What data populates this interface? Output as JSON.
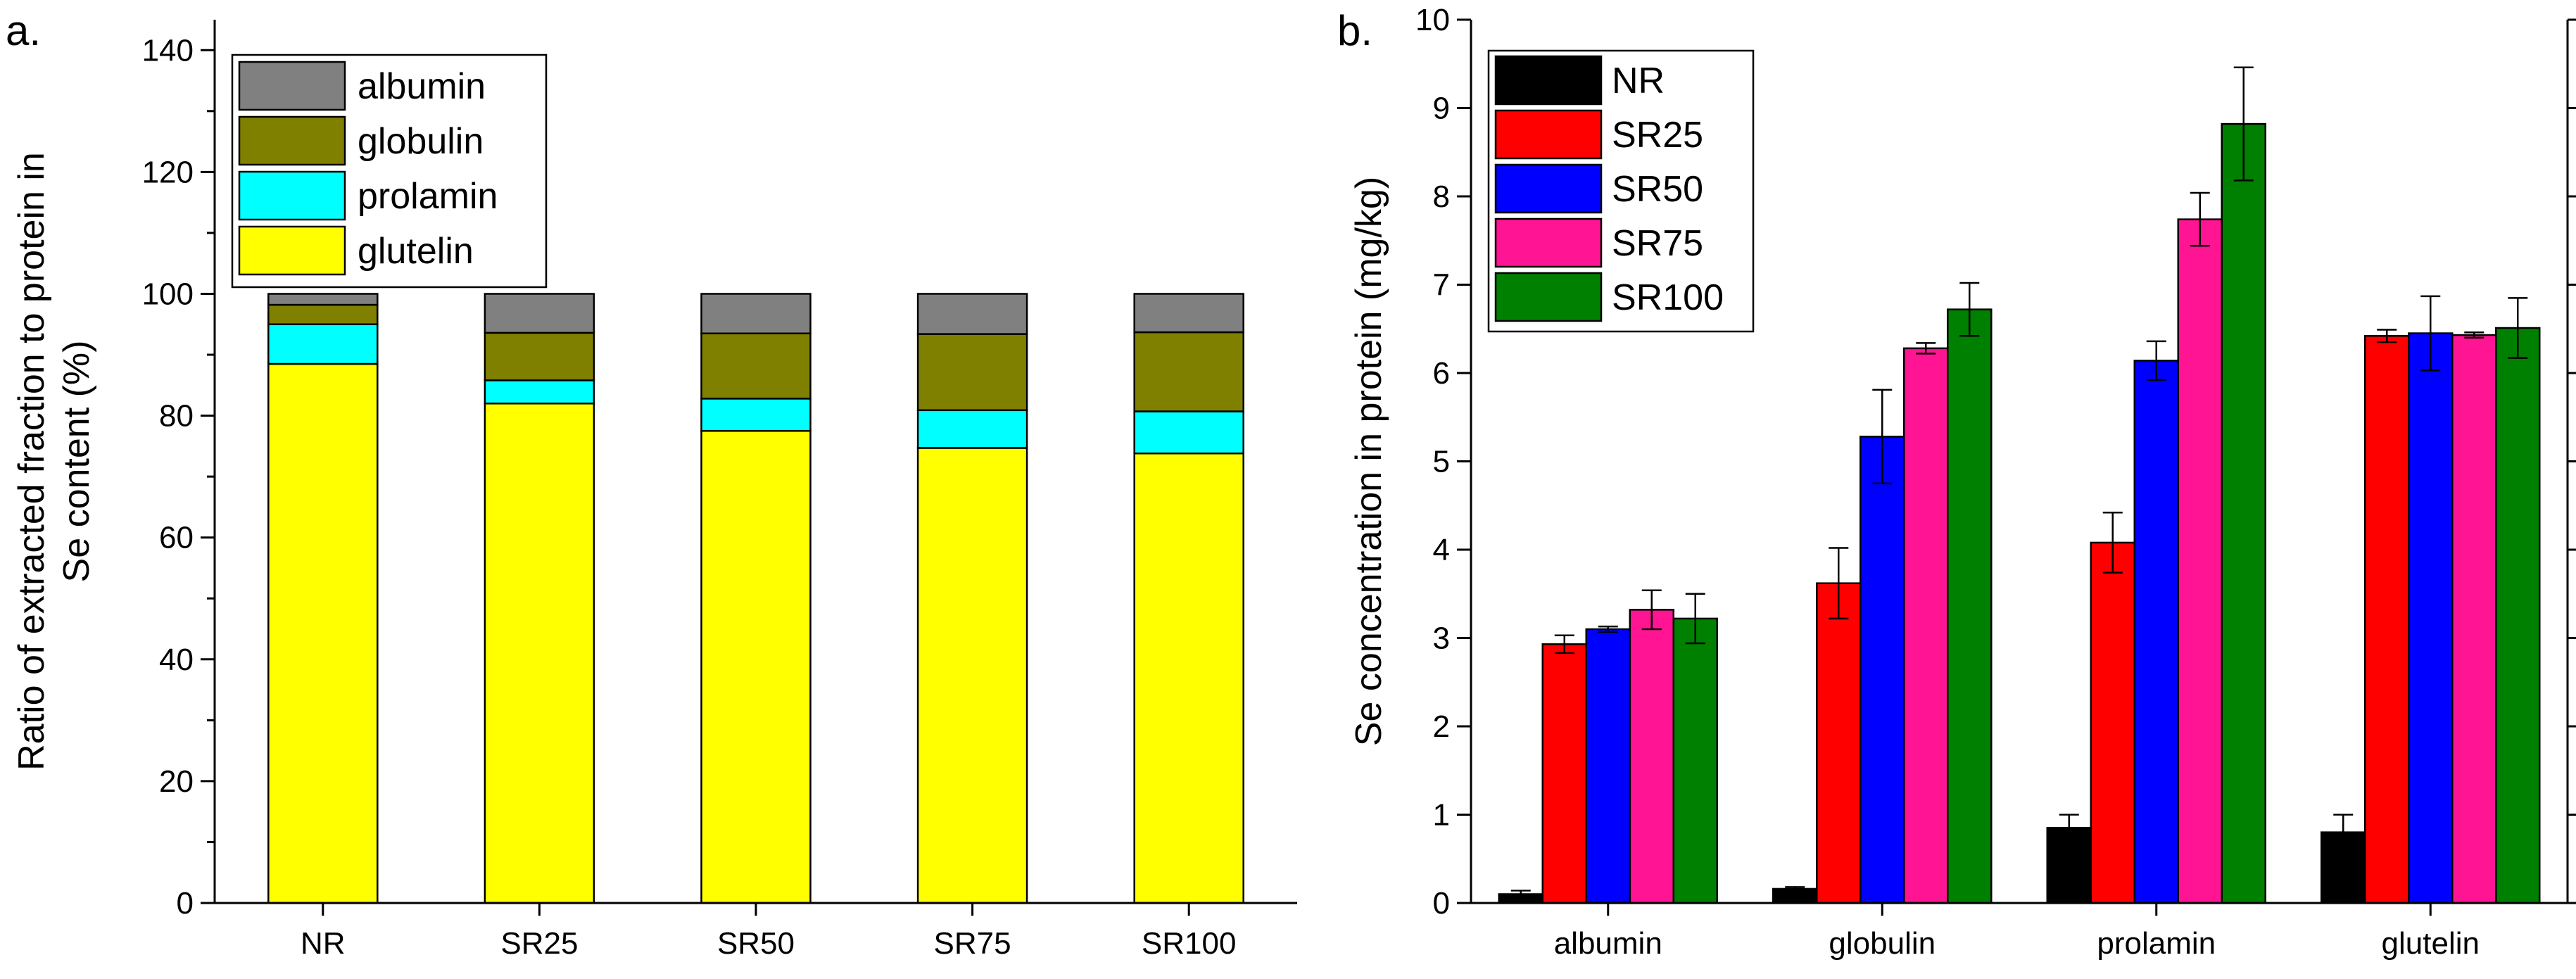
{
  "panels": {
    "a": {
      "label": "a."
    },
    "b": {
      "label": "b."
    }
  },
  "chart_data": [
    {
      "type": "bar",
      "stacked": true,
      "categories": [
        "NR",
        "SR25",
        "SR50",
        "SR75",
        "SR100"
      ],
      "series": [
        {
          "name": "glutelin",
          "color": "#ffff00",
          "values": [
            88.5,
            82.0,
            77.5,
            74.7,
            73.8
          ]
        },
        {
          "name": "prolamin",
          "color": "#00ffff",
          "values": [
            6.5,
            3.8,
            5.3,
            6.2,
            6.9
          ]
        },
        {
          "name": "globulin",
          "color": "#808000",
          "values": [
            3.2,
            7.8,
            10.7,
            12.5,
            13.0
          ]
        },
        {
          "name": "albumin",
          "color": "#808080",
          "values": [
            1.8,
            6.4,
            6.5,
            6.6,
            6.3
          ]
        }
      ],
      "legend_order": [
        "albumin",
        "globulin",
        "prolamin",
        "glutelin"
      ],
      "legend_position": "top-left",
      "ylabel_lines": [
        "Ratio of extracted fraction to protein in",
        "Se content (%)"
      ],
      "ylim": [
        0,
        145
      ],
      "yticks": [
        0,
        20,
        40,
        60,
        80,
        100,
        120,
        140
      ],
      "grid": false
    },
    {
      "type": "bar",
      "categories": [
        "albumin",
        "globulin",
        "prolamin",
        "glutelin"
      ],
      "series": [
        {
          "name": "NR",
          "color": "#000000",
          "values": [
            0.1,
            0.16,
            0.85,
            0.8
          ],
          "errors": [
            0.04,
            0.02,
            0.15,
            0.2
          ]
        },
        {
          "name": "SR25",
          "color": "#ff0000",
          "values": [
            2.93,
            3.62,
            4.08,
            6.42
          ],
          "errors": [
            0.1,
            0.4,
            0.34,
            0.07
          ]
        },
        {
          "name": "SR50",
          "color": "#0000ff",
          "values": [
            3.1,
            5.28,
            6.14,
            6.45
          ],
          "errors": [
            0.03,
            0.53,
            0.22,
            0.42
          ]
        },
        {
          "name": "SR75",
          "color": "#ff1493",
          "values": [
            3.32,
            6.28,
            7.74,
            6.43
          ],
          "errors": [
            0.22,
            0.06,
            0.3,
            0.03
          ]
        },
        {
          "name": "SR100",
          "color": "#008000",
          "values": [
            3.22,
            6.72,
            8.82,
            6.51
          ],
          "errors": [
            0.28,
            0.3,
            0.64,
            0.34
          ]
        }
      ],
      "legend_position": "top-left",
      "ylabel": "Se concentration in protein (mg/kg)",
      "ylim": [
        0,
        10
      ],
      "yticks": [
        0,
        1,
        2,
        3,
        4,
        5,
        6,
        7,
        8,
        9,
        10
      ],
      "grid": false
    }
  ]
}
